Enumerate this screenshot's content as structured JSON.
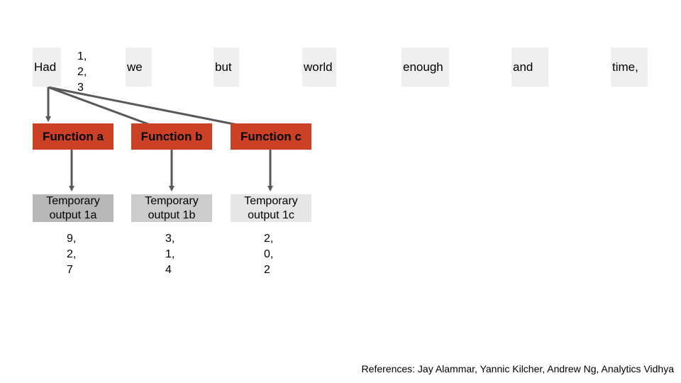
{
  "words": [
    "Had",
    "we",
    "but",
    "world",
    "enough",
    "and",
    "time,"
  ],
  "input_vector": "1,\n2,\n3",
  "functions": [
    {
      "label": "Function a"
    },
    {
      "label": "Function b"
    },
    {
      "label": "Function c"
    }
  ],
  "temporary_outputs": [
    {
      "label": "Temporary output 1a",
      "values": "9,\n2,\n7",
      "fill": "#b7b7b7"
    },
    {
      "label": "Temporary output 1b",
      "values": "3,\n1,\n4",
      "fill": "#cccccc"
    },
    {
      "label": "Temporary output 1c",
      "values": "2,\n0,\n2",
      "fill": "#e6e6e6"
    }
  ],
  "colors": {
    "function_fill": "#cc4125",
    "word_fill": "#efefef",
    "arrow": "#595959"
  },
  "references": "References: Jay Alammar, Yannic Kilcher, Andrew Ng, Analytics Vidhya"
}
